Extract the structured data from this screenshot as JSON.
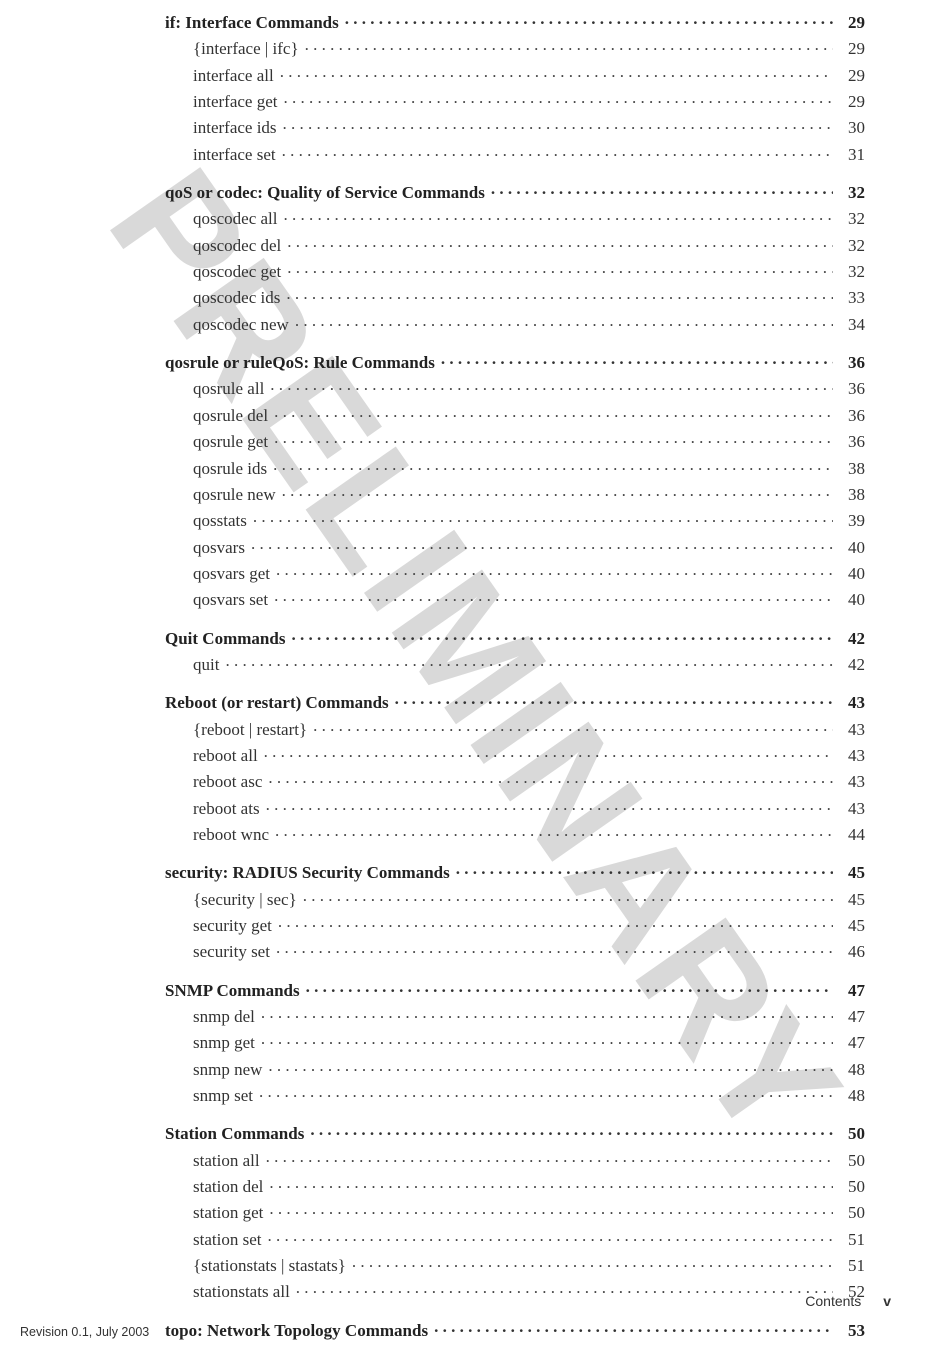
{
  "watermark": "PRELIMINARY",
  "footer": {
    "label": "Contents",
    "page_roman": "v",
    "revision": "Revision 0.1, July 2003"
  },
  "sections": [
    {
      "heading": {
        "label": "if: Interface Commands",
        "page": "29"
      },
      "items": [
        {
          "label": "{interface | ifc}",
          "page": "29"
        },
        {
          "label": "interface all",
          "page": "29"
        },
        {
          "label": "interface get",
          "page": "29"
        },
        {
          "label": "interface ids",
          "page": "30"
        },
        {
          "label": "interface set",
          "page": "31"
        }
      ]
    },
    {
      "heading": {
        "label": "qoS or codec: Quality of Service Commands",
        "page": "32"
      },
      "items": [
        {
          "label": "qoscodec all",
          "page": "32"
        },
        {
          "label": "qoscodec del",
          "page": "32"
        },
        {
          "label": "qoscodec get",
          "page": "32"
        },
        {
          "label": "qoscodec ids",
          "page": "33"
        },
        {
          "label": "qoscodec new",
          "page": "34"
        }
      ]
    },
    {
      "heading": {
        "label": "qosrule or ruleQoS: Rule Commands",
        "page": "36"
      },
      "items": [
        {
          "label": "qosrule all",
          "page": "36"
        },
        {
          "label": "qosrule del",
          "page": "36"
        },
        {
          "label": "qosrule get",
          "page": "36"
        },
        {
          "label": "qosrule ids",
          "page": "38"
        },
        {
          "label": "qosrule new",
          "page": "38"
        },
        {
          "label": "qosstats",
          "page": "39"
        },
        {
          "label": "qosvars",
          "page": "40"
        },
        {
          "label": "qosvars get",
          "page": "40"
        },
        {
          "label": "qosvars set",
          "page": "40"
        }
      ]
    },
    {
      "heading": {
        "label": "Quit Commands",
        "page": "42"
      },
      "items": [
        {
          "label": "quit",
          "page": "42"
        }
      ]
    },
    {
      "heading": {
        "label": "Reboot (or restart) Commands",
        "page": "43"
      },
      "items": [
        {
          "label": "{reboot | restart}",
          "page": "43"
        },
        {
          "label": "reboot all",
          "page": "43"
        },
        {
          "label": "reboot asc",
          "page": "43"
        },
        {
          "label": "reboot ats",
          "page": "43"
        },
        {
          "label": "reboot wnc",
          "page": "44"
        }
      ]
    },
    {
      "heading": {
        "label": "security: RADIUS Security Commands",
        "page": "45"
      },
      "items": [
        {
          "label": "{security | sec}",
          "page": "45"
        },
        {
          "label": "security get",
          "page": "45"
        },
        {
          "label": "security set",
          "page": "46"
        }
      ]
    },
    {
      "heading": {
        "label": "SNMP Commands",
        "page": "47"
      },
      "items": [
        {
          "label": "snmp del",
          "page": "47"
        },
        {
          "label": "snmp get",
          "page": "47"
        },
        {
          "label": "snmp new",
          "page": "48"
        },
        {
          "label": "snmp set",
          "page": "48"
        }
      ]
    },
    {
      "heading": {
        "label": "Station Commands",
        "page": "50"
      },
      "items": [
        {
          "label": "station all",
          "page": "50"
        },
        {
          "label": "station del",
          "page": "50"
        },
        {
          "label": "station get",
          "page": "50"
        },
        {
          "label": "station set",
          "page": "51"
        },
        {
          "label": "{stationstats | stastats}",
          "page": "51"
        },
        {
          "label": "stationstats all",
          "page": "52"
        }
      ]
    },
    {
      "heading": {
        "label": "topo: Network Topology Commands",
        "page": "53"
      },
      "items": []
    }
  ]
}
